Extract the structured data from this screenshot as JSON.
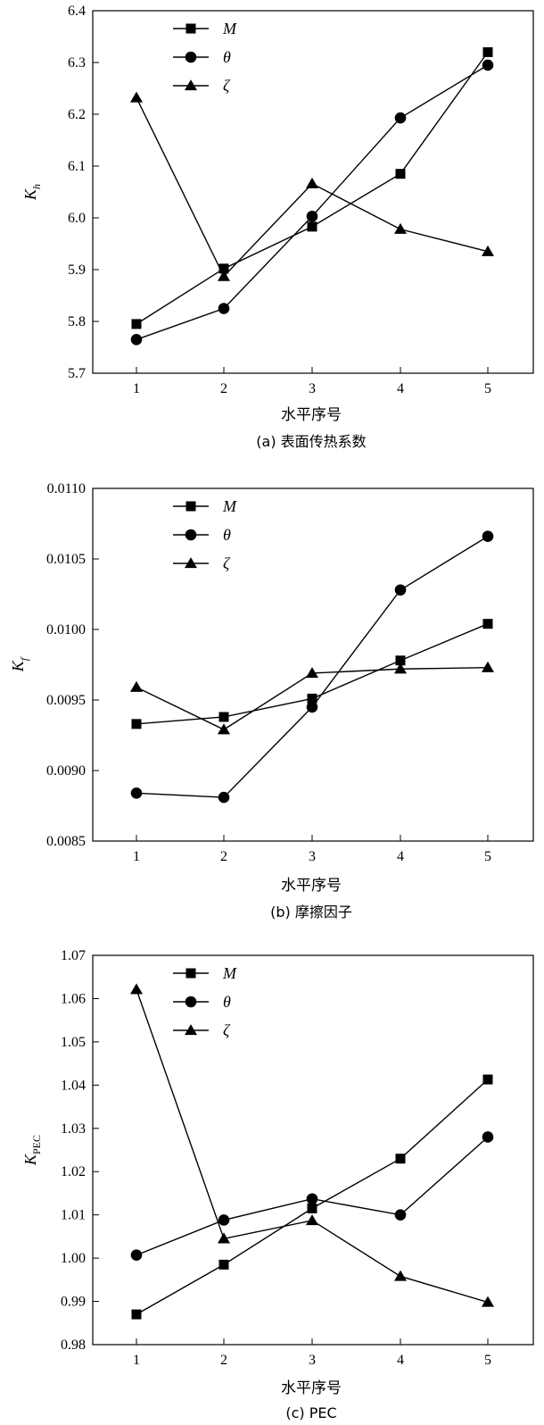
{
  "chart_data": [
    {
      "type": "line",
      "categories": [
        "1",
        "2",
        "3",
        "4",
        "5"
      ],
      "xlabel": "水平序号",
      "caption": "(a) 表面传热系数",
      "ylabel_main": "K",
      "ylabel_sub": "h",
      "ylim": [
        5.7,
        6.4
      ],
      "yticks": [
        5.7,
        5.8,
        5.9,
        6.0,
        6.1,
        6.2,
        6.3,
        6.4
      ],
      "ytick_decimals": 1,
      "legend_position": "top-left",
      "series": [
        {
          "name": "M",
          "marker": "square",
          "values": [
            5.795,
            5.902,
            5.983,
            6.085,
            6.32
          ]
        },
        {
          "name": "θ",
          "marker": "circle",
          "values": [
            5.765,
            5.825,
            6.003,
            6.193,
            6.295
          ]
        },
        {
          "name": "ζ",
          "marker": "triangle",
          "values": [
            6.232,
            5.887,
            6.066,
            5.978,
            5.935
          ]
        }
      ]
    },
    {
      "type": "line",
      "categories": [
        "1",
        "2",
        "3",
        "4",
        "5"
      ],
      "xlabel": "水平序号",
      "caption": "(b) 摩擦因子",
      "ylabel_main": "K",
      "ylabel_sub": "f",
      "ylim": [
        0.0085,
        0.011
      ],
      "yticks": [
        0.0085,
        0.009,
        0.0095,
        0.01,
        0.0105,
        0.011
      ],
      "ytick_decimals": 4,
      "legend_position": "top-left",
      "series": [
        {
          "name": "M",
          "marker": "square",
          "values": [
            0.00933,
            0.00938,
            0.00951,
            0.00978,
            0.01004
          ]
        },
        {
          "name": "θ",
          "marker": "circle",
          "values": [
            0.00884,
            0.00881,
            0.00945,
            0.01028,
            0.01066
          ]
        },
        {
          "name": "ζ",
          "marker": "triangle",
          "values": [
            0.00959,
            0.00929,
            0.00969,
            0.00972,
            0.00973
          ]
        }
      ]
    },
    {
      "type": "line",
      "categories": [
        "1",
        "2",
        "3",
        "4",
        "5"
      ],
      "xlabel": "水平序号",
      "caption": "(c) PEC",
      "ylabel_main": "K",
      "ylabel_sub": "PEC",
      "ylim": [
        0.98,
        1.07
      ],
      "yticks": [
        0.98,
        0.99,
        1.0,
        1.01,
        1.02,
        1.03,
        1.04,
        1.05,
        1.06,
        1.07
      ],
      "ytick_decimals": 2,
      "legend_position": "top-left",
      "series": [
        {
          "name": "M",
          "marker": "square",
          "values": [
            0.987,
            0.9985,
            1.0115,
            1.023,
            1.0413
          ]
        },
        {
          "name": "θ",
          "marker": "circle",
          "values": [
            1.0007,
            1.0088,
            1.0137,
            1.01,
            1.028
          ]
        },
        {
          "name": "ζ",
          "marker": "triangle",
          "values": [
            1.0621,
            1.0045,
            1.0087,
            0.9958,
            0.9898
          ]
        }
      ]
    }
  ]
}
